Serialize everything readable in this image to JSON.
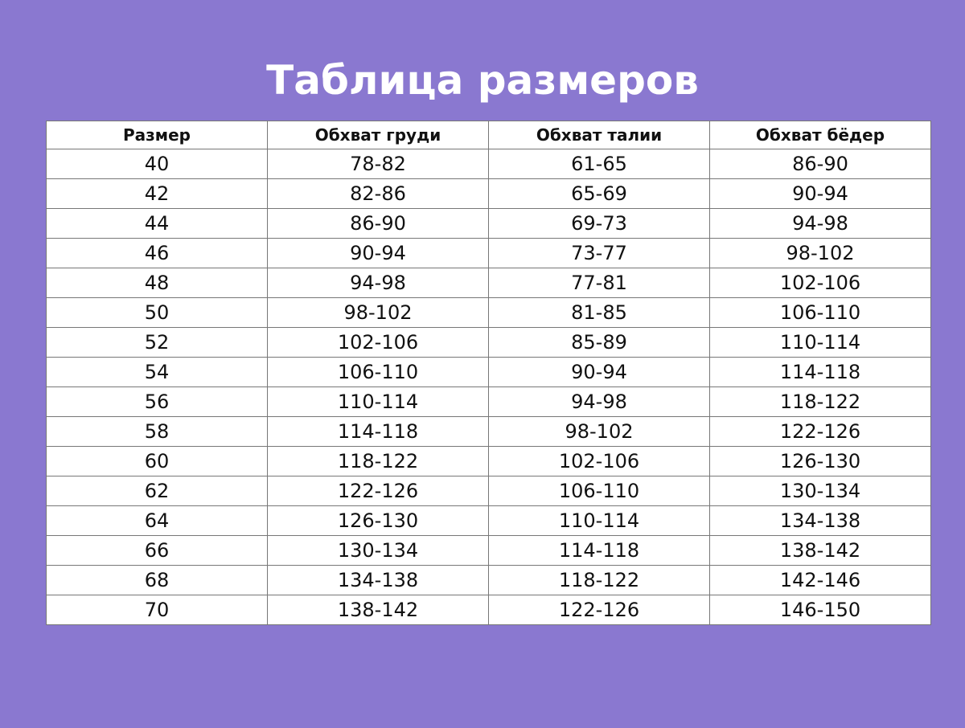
{
  "title": "Таблица размеров",
  "colors": {
    "background": "#8a78d0",
    "title": "#ffffff",
    "table_bg": "#ffffff",
    "border": "#777777"
  },
  "table": {
    "headers": [
      "Размер",
      "Обхват груди",
      "Обхват талии",
      "Обхват бёдер"
    ],
    "rows": [
      [
        "40",
        "78-82",
        "61-65",
        "86-90"
      ],
      [
        "42",
        "82-86",
        "65-69",
        "90-94"
      ],
      [
        "44",
        "86-90",
        "69-73",
        "94-98"
      ],
      [
        "46",
        "90-94",
        "73-77",
        "98-102"
      ],
      [
        "48",
        "94-98",
        "77-81",
        "102-106"
      ],
      [
        "50",
        "98-102",
        "81-85",
        "106-110"
      ],
      [
        "52",
        "102-106",
        "85-89",
        "110-114"
      ],
      [
        "54",
        "106-110",
        "90-94",
        "114-118"
      ],
      [
        "56",
        "110-114",
        "94-98",
        "118-122"
      ],
      [
        "58",
        "114-118",
        "98-102",
        "122-126"
      ],
      [
        "60",
        "118-122",
        "102-106",
        "126-130"
      ],
      [
        "62",
        "122-126",
        "106-110",
        "130-134"
      ],
      [
        "64",
        "126-130",
        "110-114",
        "134-138"
      ],
      [
        "66",
        "130-134",
        "114-118",
        "138-142"
      ],
      [
        "68",
        "134-138",
        "118-122",
        "142-146"
      ],
      [
        "70",
        "138-142",
        "122-126",
        "146-150"
      ]
    ]
  }
}
